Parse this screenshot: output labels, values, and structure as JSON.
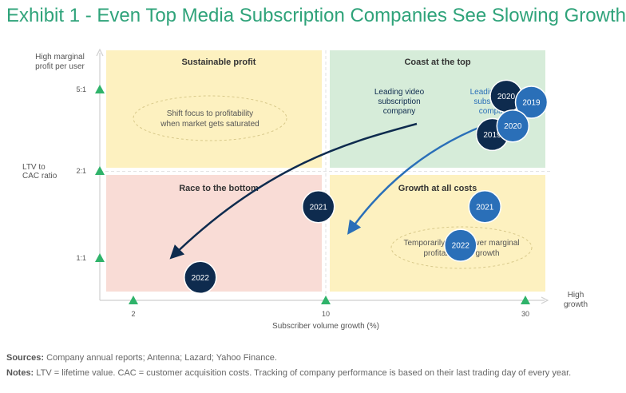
{
  "title": "Exhibit 1 - Even Top Media Subscription Companies See Slowing Growth",
  "chart_data": {
    "type": "scatter",
    "xlabel": "Subscriber volume growth (%)",
    "ylabel": "LTV to CAC ratio",
    "y_axis_top_label": "High marginal profit per user",
    "x_axis_right_label": "High growth",
    "x_ticks": [
      "2",
      "10",
      "30"
    ],
    "y_ticks": [
      "1:1",
      "2:1",
      "5:1"
    ],
    "quadrants": [
      {
        "label": "Sustainable profit",
        "note": "Shift focus to profitability when market gets saturated",
        "color": "#fdf1c0"
      },
      {
        "label": "Coast at the top",
        "note": "",
        "color": "#d6ecd9"
      },
      {
        "label": "Race to the bottom",
        "note": "",
        "color": "#f9dcd6"
      },
      {
        "label": "Growth at all costs",
        "note": "Temporarily trade lower marginal profitability for growth",
        "color": "#fdf1c0"
      }
    ],
    "series": [
      {
        "name": "Leading video subscription company",
        "color": "#0e2b4e",
        "points": [
          {
            "label": "2019",
            "x": 25,
            "y": 3.0
          },
          {
            "label": "2020",
            "x": 27,
            "y": 4.6
          },
          {
            "label": "2021",
            "x": 9.4,
            "y": 1.5
          },
          {
            "label": "2022",
            "x": 3.5,
            "y": 0.85
          }
        ]
      },
      {
        "name": "Leading audio subscription company",
        "color": "#2a6fb8",
        "points": [
          {
            "label": "2019",
            "x": 31,
            "y": 4.3
          },
          {
            "label": "2020",
            "x": 28,
            "y": 3.3
          },
          {
            "label": "2021",
            "x": 24,
            "y": 1.5
          },
          {
            "label": "2022",
            "x": 21,
            "y": 1.1
          }
        ]
      }
    ]
  },
  "footer": {
    "sources_label": "Sources:",
    "sources_text": "Company annual reports; Antenna; Lazard; Yahoo Finance.",
    "notes_label": "Notes:",
    "notes_text": "LTV = lifetime value. CAC = customer acquisition costs. Tracking of company performance is based on their last trading day of every year."
  },
  "colors": {
    "title": "#2fa37a",
    "triangle": "#2fb36a",
    "video": "#0e2b4e",
    "audio": "#2a6fb8"
  }
}
